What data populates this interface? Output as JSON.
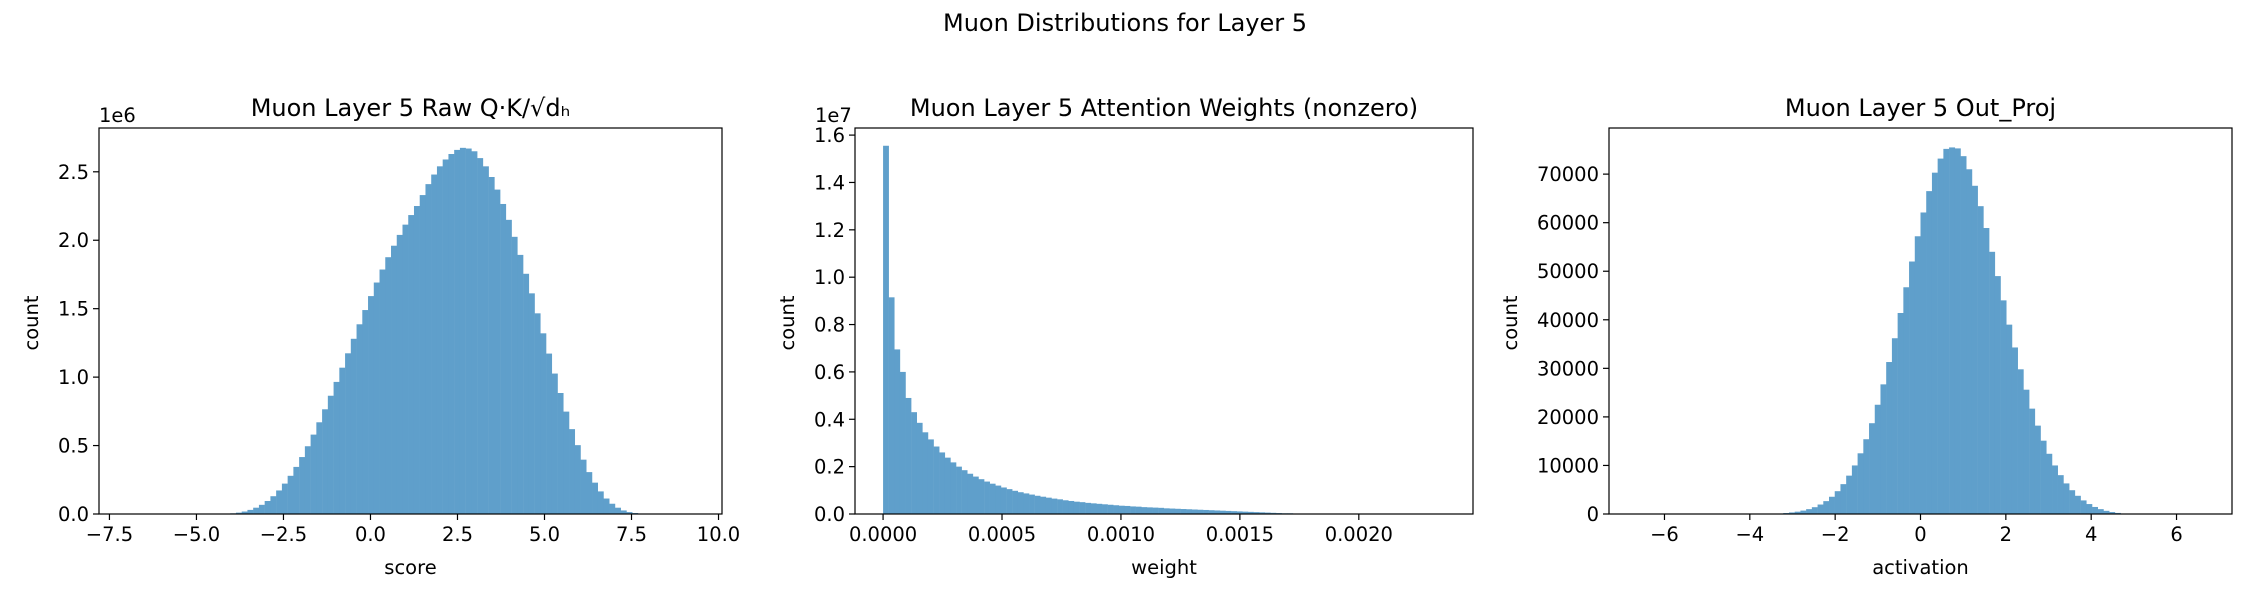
{
  "figure": {
    "suptitle": "Muon Distributions for Layer 5",
    "bar_color": "#5f9fcb"
  },
  "chart_data": [
    {
      "type": "histogram",
      "title": "Muon Layer 5 Raw Q·K/√dₕ",
      "xlabel": "score",
      "ylabel": "count",
      "xlim": [
        -7.8,
        10.1
      ],
      "ylim": [
        0,
        2.82
      ],
      "y_offset_label": "1e6",
      "xticks": [
        -7.5,
        -5.0,
        -2.5,
        0.0,
        2.5,
        5.0,
        7.5,
        10.0
      ],
      "xtick_labels": [
        "−7.5",
        "−5.0",
        "−2.5",
        "0.0",
        "2.5",
        "5.0",
        "7.5",
        "10.0"
      ],
      "yticks": [
        0,
        0.5,
        1.0,
        1.5,
        2.0,
        2.5
      ],
      "ytick_labels": [
        "0.0",
        "0.5",
        "1.0",
        "1.5",
        "2.0",
        "2.5"
      ],
      "bin_start": -7.0,
      "bin_width": 0.165,
      "counts": [
        0.0,
        0.0,
        0.0,
        0.0,
        0.0,
        0.0,
        0.0,
        0.0,
        0.0,
        0.0,
        0.0,
        0.0,
        0.0,
        0.0,
        0.0,
        0.0,
        0.0,
        0.002,
        0.005,
        0.01,
        0.018,
        0.03,
        0.046,
        0.067,
        0.095,
        0.13,
        0.172,
        0.222,
        0.279,
        0.344,
        0.416,
        0.495,
        0.58,
        0.67,
        0.765,
        0.864,
        0.965,
        1.069,
        1.174,
        1.28,
        1.386,
        1.49,
        1.592,
        1.691,
        1.786,
        1.876,
        1.96,
        2.039,
        2.114,
        2.184,
        2.25,
        2.33,
        2.41,
        2.48,
        2.54,
        2.59,
        2.63,
        2.66,
        2.675,
        2.67,
        2.65,
        2.6,
        2.54,
        2.462,
        2.37,
        2.265,
        2.149,
        2.025,
        1.893,
        1.755,
        1.612,
        1.466,
        1.32,
        1.172,
        1.026,
        0.884,
        0.748,
        0.62,
        0.503,
        0.397,
        0.306,
        0.229,
        0.165,
        0.113,
        0.075,
        0.046,
        0.026,
        0.014,
        0.007,
        0.003,
        0.001,
        0.0,
        0.0,
        0.0,
        0.0,
        0.0,
        0.0,
        0.0,
        0.0,
        0.0
      ]
    },
    {
      "type": "histogram",
      "title": "Muon Layer 5 Attention Weights (nonzero)",
      "xlabel": "weight",
      "ylabel": "count",
      "xlim": [
        -0.000118,
        0.00248
      ],
      "ylim": [
        0,
        1.63
      ],
      "y_offset_label": "1e7",
      "xticks": [
        0.0,
        0.0005,
        0.001,
        0.0015,
        0.002
      ],
      "xtick_labels": [
        "0.0000",
        "0.0005",
        "0.0010",
        "0.0015",
        "0.0020"
      ],
      "yticks": [
        0,
        0.2,
        0.4,
        0.6,
        0.8,
        1.0,
        1.2,
        1.4,
        1.6
      ],
      "ytick_labels": [
        "0.0",
        "0.2",
        "0.4",
        "0.6",
        "0.8",
        "1.0",
        "1.2",
        "1.4",
        "1.6"
      ],
      "bin_start": 0.0,
      "bin_width": 2.36e-05,
      "counts": [
        1.555,
        0.915,
        0.695,
        0.6,
        0.49,
        0.43,
        0.385,
        0.345,
        0.315,
        0.285,
        0.26,
        0.238,
        0.218,
        0.2,
        0.185,
        0.17,
        0.158,
        0.147,
        0.137,
        0.128,
        0.12,
        0.112,
        0.105,
        0.098,
        0.092,
        0.087,
        0.082,
        0.077,
        0.073,
        0.069,
        0.065,
        0.062,
        0.058,
        0.055,
        0.052,
        0.05,
        0.047,
        0.045,
        0.043,
        0.041,
        0.039,
        0.037,
        0.035,
        0.034,
        0.032,
        0.031,
        0.029,
        0.028,
        0.027,
        0.026,
        0.024,
        0.023,
        0.022,
        0.021,
        0.02,
        0.019,
        0.018,
        0.017,
        0.016,
        0.015,
        0.014,
        0.013,
        0.012,
        0.011,
        0.01,
        0.009,
        0.008,
        0.007,
        0.006,
        0.005,
        0.004,
        0.003,
        0.003,
        0.002,
        0.002,
        0.002,
        0.001,
        0.001,
        0.001,
        0.001,
        0.001,
        0.0,
        0.0,
        0.0,
        0.0,
        0.0,
        0.0,
        0.0,
        0.0,
        0.0,
        0.0,
        0.0,
        0.0,
        0.0,
        0.0,
        0.0,
        0.0,
        0.0,
        0.0,
        0.0
      ]
    },
    {
      "type": "histogram",
      "title": "Muon Layer 5 Out_Proj",
      "xlabel": "activation",
      "ylabel": "count",
      "xlim": [
        -7.3,
        7.3
      ],
      "ylim": [
        0,
        79500
      ],
      "y_offset_label": "",
      "xticks": [
        -6,
        -4,
        -2,
        0,
        2,
        4,
        6
      ],
      "xtick_labels": [
        "−6",
        "−4",
        "−2",
        "0",
        "2",
        "4",
        "6"
      ],
      "yticks": [
        0,
        10000,
        20000,
        30000,
        40000,
        50000,
        60000,
        70000
      ],
      "ytick_labels": [
        "0",
        "10000",
        "20000",
        "30000",
        "40000",
        "50000",
        "60000",
        "70000"
      ],
      "bin_start": -6.7,
      "bin_width": 0.134,
      "counts": [
        0,
        0,
        0,
        0,
        0,
        0,
        0,
        0,
        0,
        0,
        0,
        0,
        0,
        0,
        0,
        0,
        0,
        0,
        0,
        0,
        0,
        0,
        0,
        0,
        0,
        50,
        200,
        320,
        480,
        700,
        1000,
        1400,
        1950,
        2650,
        3550,
        4700,
        6150,
        7900,
        10000,
        12500,
        15400,
        18700,
        22500,
        26700,
        31300,
        36200,
        41400,
        46700,
        52000,
        57200,
        62100,
        66500,
        70300,
        73200,
        75200,
        75500,
        75300,
        73700,
        71000,
        67600,
        63400,
        58900,
        54000,
        49000,
        44000,
        39000,
        34300,
        29800,
        25600,
        21700,
        18200,
        15100,
        12400,
        10000,
        8000,
        6300,
        4900,
        3750,
        2800,
        2050,
        1450,
        1000,
        650,
        400,
        220,
        100,
        0,
        0,
        0,
        0,
        0,
        0,
        0,
        0,
        0,
        0,
        0,
        0,
        0,
        0,
        0,
        0,
        0,
        0,
        0,
        0,
        0,
        0,
        0,
        0
      ]
    }
  ]
}
